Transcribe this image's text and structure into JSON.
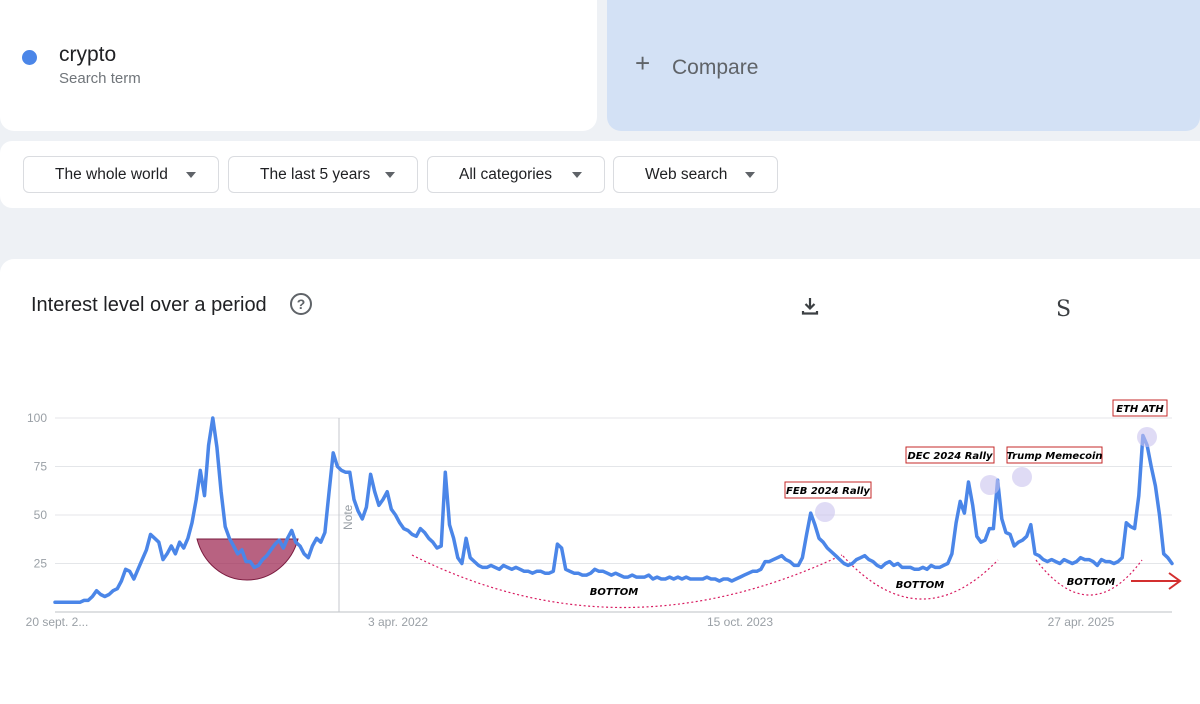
{
  "search_term": {
    "name": "crypto",
    "subtitle": "Search term",
    "color": "#4b86e8"
  },
  "compare": {
    "plus": "+",
    "label": "Compare"
  },
  "filters": [
    {
      "label": "The whole world"
    },
    {
      "label": "The last 5 years"
    },
    {
      "label": "All categories"
    },
    {
      "label": "Web search"
    }
  ],
  "chart_panel": {
    "title": "Interest level over a period",
    "help": "?",
    "corner_letter": "S",
    "note_label": "Note"
  },
  "icons": {
    "download": "download-icon",
    "help": "help-icon",
    "caret": "caret-down-icon"
  },
  "chart_data": {
    "type": "line",
    "series_color": "#4b86e8",
    "yticks": [
      25,
      50,
      75,
      100
    ],
    "ylim": [
      0,
      100
    ],
    "grid": true,
    "xtick_labels": [
      "20 sept. 2...",
      "3 apr. 2022",
      "15 oct. 2023",
      "27 apr. 2025"
    ],
    "values": [
      5,
      5,
      5,
      5,
      5,
      5,
      5,
      6,
      6,
      8,
      11,
      9,
      8,
      9,
      11,
      12,
      16,
      22,
      21,
      17,
      22,
      27,
      32,
      40,
      38,
      36,
      27,
      30,
      34,
      30,
      36,
      33,
      38,
      46,
      58,
      73,
      60,
      86,
      100,
      85,
      62,
      44,
      38,
      34,
      30,
      32,
      26,
      26,
      23,
      24,
      27,
      29,
      32,
      35,
      37,
      33,
      38,
      42,
      36,
      34,
      30,
      28,
      34,
      38,
      36,
      41,
      62,
      82,
      75,
      73,
      72,
      72,
      58,
      52,
      48,
      54,
      71,
      62,
      55,
      58,
      62,
      53,
      50,
      46,
      43,
      42,
      40,
      39,
      43,
      41,
      38,
      36,
      33,
      34,
      72,
      45,
      38,
      28,
      25,
      38,
      28,
      26,
      24,
      23,
      23,
      24,
      23,
      22,
      24,
      23,
      22,
      23,
      22,
      21,
      21,
      20,
      21,
      21,
      20,
      20,
      21,
      35,
      33,
      22,
      21,
      20,
      20,
      19,
      19,
      20,
      22,
      21,
      21,
      20,
      19,
      20,
      19,
      18,
      18,
      19,
      18,
      18,
      18,
      19,
      17,
      18,
      17,
      17,
      18,
      17,
      18,
      17,
      18,
      17,
      17,
      17,
      17,
      18,
      17,
      17,
      16,
      17,
      17,
      16,
      17,
      18,
      19,
      20,
      21,
      21,
      22,
      26,
      26,
      27,
      28,
      29,
      27,
      26,
      24,
      24,
      28,
      40,
      51,
      45,
      38,
      36,
      33,
      31,
      29,
      27,
      25,
      24,
      25,
      27,
      28,
      29,
      27,
      26,
      24,
      23,
      25,
      26,
      24,
      25,
      23,
      23,
      23,
      22,
      22,
      23,
      22,
      24,
      23,
      23,
      24,
      25,
      30,
      46,
      57,
      51,
      67,
      55,
      39,
      36,
      37,
      43,
      43,
      68,
      48,
      41,
      40,
      34,
      36,
      37,
      39,
      45,
      30,
      29,
      27,
      26,
      27,
      26,
      25,
      27,
      26,
      25,
      26,
      28,
      27,
      27,
      26,
      24,
      27,
      26,
      26,
      25,
      26,
      28,
      46,
      44,
      43,
      60,
      91,
      86,
      75,
      65,
      50,
      30,
      28,
      25
    ],
    "annotations": [
      {
        "label": "FEB 2024 Rally"
      },
      {
        "label": "DEC 2024 Rally"
      },
      {
        "label": "Trump Memecoin"
      },
      {
        "label": "ETH ATH"
      }
    ],
    "bottom_label": "BOTTOM"
  }
}
